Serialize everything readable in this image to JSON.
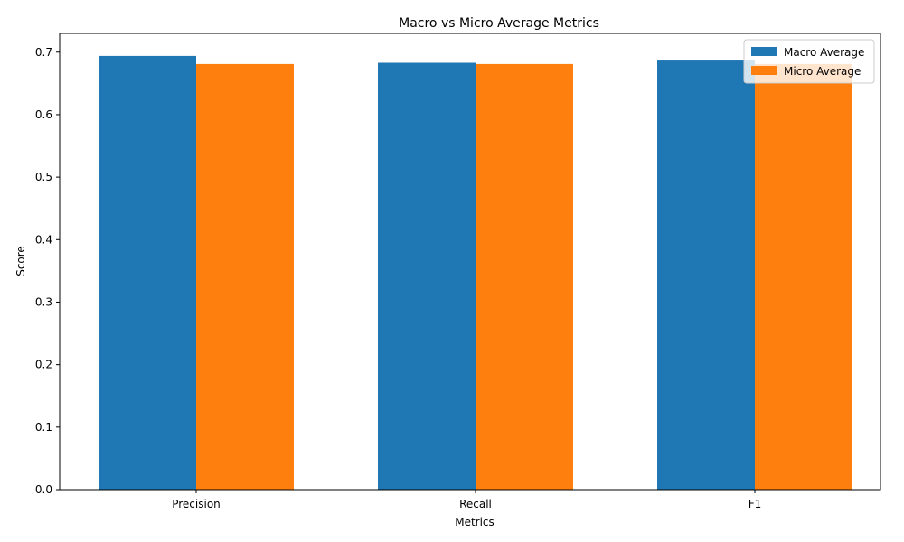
{
  "chart_data": {
    "type": "bar",
    "title": "Macro vs Micro Average Metrics",
    "xlabel": "Metrics",
    "ylabel": "Score",
    "categories": [
      "Precision",
      "Recall",
      "F1"
    ],
    "series": [
      {
        "name": "Macro Average",
        "color": "#1f77b4",
        "values": [
          0.694,
          0.683,
          0.688
        ]
      },
      {
        "name": "Micro Average",
        "color": "#ff7f0e",
        "values": [
          0.681,
          0.681,
          0.681
        ]
      }
    ],
    "ylim": [
      0,
      0.73
    ],
    "yticks": [
      "0.0",
      "0.1",
      "0.2",
      "0.3",
      "0.4",
      "0.5",
      "0.6",
      "0.7"
    ],
    "legend_position": "top-right",
    "grid": false
  }
}
